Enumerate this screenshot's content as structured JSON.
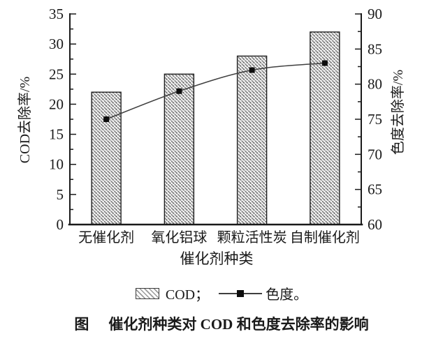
{
  "figure": {
    "caption_prefix": "图",
    "caption_text": "催化剂种类对 COD 和色度去除率的影响"
  },
  "legend": {
    "bar_label": "COD；",
    "line_label": "色度。"
  },
  "chart_data": {
    "type": "bar+line",
    "categories": [
      "无催化剂",
      "氧化铝球",
      "颗粒活性炭",
      "自制催化剂"
    ],
    "series": [
      {
        "name": "COD",
        "type": "bar",
        "axis": "left",
        "values": [
          22,
          25,
          28,
          32
        ]
      },
      {
        "name": "色度",
        "type": "line",
        "axis": "right",
        "values": [
          75,
          79,
          82,
          83
        ]
      }
    ],
    "xlabel": "催化剂种类",
    "left_axis": {
      "label": "COD去除率/%",
      "min": 0,
      "max": 35,
      "major_step": 5,
      "minor_step": 2.5
    },
    "right_axis": {
      "label": "色度去除率/%",
      "min": 60,
      "max": 90,
      "major_step": 5,
      "minor_step": 2.5
    },
    "grid": false,
    "legend_position": "bottom"
  },
  "colors": {
    "background": "#ffffff",
    "text": "#1a1a1a",
    "bar_edge": "#1f1f1f",
    "bar_hatch": "#9a9a9a",
    "bar_hatch_dark": "#3c3c3c",
    "line": "#3f3f3f",
    "marker": "#0d0d0d",
    "axis": "#1a1a1a"
  }
}
